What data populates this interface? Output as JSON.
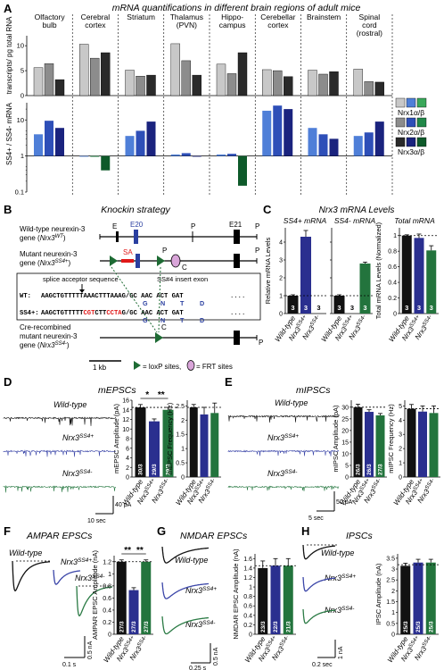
{
  "figure": {
    "panel_letters": [
      "A",
      "B",
      "C",
      "D",
      "E",
      "F",
      "G",
      "H"
    ],
    "panel_a": {
      "title": "mRNA quantifications in different brain regions of adult mice",
      "regions": [
        "Olfactory bulb",
        "Cerebral cortex",
        "Striatum",
        "Thalamus (PVN)",
        "Hippo-campus",
        "Cerebellar cortex",
        "Brainstem",
        "Spinal cord (rostral)"
      ],
      "top_ylabel": "transcripts/ pg total RNA",
      "bottom_ylabel": "SS4+ / SS4- mRNA",
      "legend": [
        "Nrx1α/β",
        "Nrx2α/β",
        "Nrx3α/β"
      ],
      "legend_colors": [
        [
          "#c8c8c8",
          "#4f7fd8",
          "#3aa85a"
        ],
        [
          "#8c8c8c",
          "#2e4fb8",
          "#218848"
        ],
        [
          "#2a2a2a",
          "#1a237e",
          "#0e5a2a"
        ]
      ]
    },
    "panel_b": {
      "title": "Knockin strategy",
      "wt_label": "Wild-type neurexin-3 gene (Nrx3WT)",
      "mut_label": "Mutant neurexin-3 gene (Nrx3SS4+)",
      "cre_label": "Cre-recombined mutant neurexin-3 gene (Nrx3SS4-)",
      "e_label": "E",
      "e20_label": "E20",
      "e21_label": "E21",
      "p_label": "P",
      "c_label": "C",
      "sa_label": "SA",
      "splice_label": "splice acceptor sequence",
      "insert_label": "SS#4 insert exon",
      "wt_prefix": "WT:",
      "wt_seq": "AAGCTGTTTTTAAACTTTAAAG/GC AAC ACT GAT",
      "ss4_prefix": "SS4+:",
      "ss4_seq": "AAGCTGTTTTTCGTCTTCCTAG/GC AAC ACT GAT",
      "aa": [
        "G",
        "N",
        "T",
        "D"
      ],
      "dots": "....",
      "scale": "1 kb",
      "loxp_legend": "= loxP sites,",
      "frt_legend": "= FRT sites"
    },
    "panel_c": {
      "title": "Nrx3 mRNA Levels",
      "sub_plus": "SS4+ mRNA",
      "sub_minus": "SS4- mRNA",
      "sub_total": "Total mRNA",
      "ylabel_rel": "Relative mRNA Levels",
      "ylabel_total": "Total mRNA Levels (Normalized)",
      "n_label": "3",
      "genotypes": [
        "Wild-type",
        "Nrx3SS4+",
        "Nrx3SS4-"
      ],
      "genotype_colors": [
        "#111111",
        "#2a2f8f",
        "#23743d"
      ]
    },
    "panel_d": {
      "title": "mEPSCs",
      "amp_ylabel": "mEPSC Amplitude (pA)",
      "freq_ylabel": "mEPSC Frequency (Hz)",
      "n_labels": [
        "30/3",
        "29/3",
        "29/3"
      ],
      "sig": [
        "*",
        "**"
      ],
      "scale_y": "40 pA",
      "scale_x": "10 sec"
    },
    "panel_e": {
      "title": "mIPSCs",
      "amp_ylabel": "mIPSC Amplitude (pA)",
      "freq_ylabel": "mIPSC Frequency (Hz)",
      "n_labels": [
        "26/3",
        "26/3",
        "27/3"
      ],
      "scale_y": "50 pA",
      "scale_x": "5 sec"
    },
    "panel_f": {
      "title": "AMPAR EPSCs",
      "ylabel": "AMPAR EPSC Amplitude (nA)",
      "n_labels": [
        "27/3",
        "27/3",
        "27/3"
      ],
      "sig": [
        "**",
        "**"
      ],
      "scale_y": "0.5 nA",
      "scale_x": "0.1 s"
    },
    "panel_g": {
      "title": "NMDAR EPSCs",
      "ylabel": "NMDAR EPSC Amplitude (nA)",
      "n_labels": [
        "23/3",
        "22/3",
        "21/3"
      ],
      "scale_y": "0.5 nA",
      "scale_x": "0.25 s"
    },
    "panel_h": {
      "title": "IPSCs",
      "ylabel": "IPSC Amplitude (nA)",
      "n_labels": [
        "25/3",
        "25/3",
        "25/3"
      ],
      "scale_y": "1 nA",
      "scale_x": "0.2 sec"
    }
  },
  "chart_data": [
    {
      "type": "bar",
      "id": "A-top",
      "categories": [
        "Olfactory bulb",
        "Cerebral cortex",
        "Striatum",
        "Thalamus (PVN)",
        "Hippo-campus",
        "Cerebellar cortex",
        "Brainstem",
        "Spinal cord (rostral)"
      ],
      "ylabel": "transcripts/ pg total RNA",
      "ylim": [
        0,
        12
      ],
      "yticks": [
        0,
        5,
        10
      ],
      "series": [
        {
          "name": "Nrx1α/β",
          "values": [
            5.6,
            10.3,
            5.1,
            10.4,
            6.3,
            5.2,
            5.1,
            5.3
          ]
        },
        {
          "name": "Nrx2α/β",
          "values": [
            6.4,
            7.5,
            3.9,
            7.0,
            4.4,
            5.0,
            4.3,
            2.8
          ]
        },
        {
          "name": "Nrx3α/β",
          "values": [
            3.2,
            8.6,
            4.1,
            4.1,
            8.6,
            3.8,
            4.8,
            2.7
          ]
        }
      ]
    },
    {
      "type": "bar",
      "id": "A-bottom",
      "categories": [
        "Olfactory bulb",
        "Cerebral cortex",
        "Striatum",
        "Thalamus (PVN)",
        "Hippo-campus",
        "Cerebellar cortex",
        "Brainstem",
        "Spinal cord (rostral)"
      ],
      "ylabel": "SS4+ / SS4- mRNA",
      "log_scale": true,
      "ylim": [
        0.1,
        30
      ],
      "yticks": [
        0.1,
        1,
        10
      ],
      "series": [
        {
          "name": "Nrx1α/β",
          "values": [
            4.0,
            1.0,
            3.6,
            1.1,
            1.1,
            18.0,
            6.0,
            3.6
          ]
        },
        {
          "name": "Nrx2α/β",
          "values": [
            9.5,
            0.95,
            5.0,
            1.2,
            1.15,
            25.0,
            4.0,
            4.5
          ]
        },
        {
          "name": "Nrx3α/β",
          "values": [
            6.0,
            0.4,
            9.0,
            1.0,
            0.15,
            20.0,
            3.0,
            9.0
          ]
        }
      ]
    },
    {
      "type": "bar",
      "id": "C-plus",
      "categories": [
        "Wild-type",
        "Nrx3SS4+",
        "Nrx3SS4-"
      ],
      "values": [
        1.0,
        4.3,
        0.0
      ],
      "ylim": [
        0,
        4.8
      ],
      "yticks": [
        0,
        1,
        2,
        3,
        4
      ],
      "ylabel": "Relative mRNA Levels"
    },
    {
      "type": "bar",
      "id": "C-minus",
      "categories": [
        "Wild-type",
        "Nrx3SS4+",
        "Nrx3SS4-"
      ],
      "values": [
        1.0,
        0.0,
        2.8
      ],
      "ylim": [
        0,
        4.8
      ],
      "yticks": [
        0,
        1,
        2,
        3,
        4
      ]
    },
    {
      "type": "bar",
      "id": "C-total",
      "categories": [
        "Wild-type",
        "Nrx3SS4+",
        "Nrx3SS4-"
      ],
      "values": [
        1.0,
        0.97,
        0.81
      ],
      "ylim": [
        0,
        1.1
      ],
      "yticks": [
        0,
        0.2,
        0.4,
        0.6,
        0.8,
        1.0
      ],
      "ylabel": "Total mRNA Levels (Normalized)"
    },
    {
      "type": "bar",
      "id": "D-amp",
      "categories": [
        "Wild-type",
        "Nrx3SS4+",
        "Nrx3SS4-"
      ],
      "values": [
        14.5,
        11.6,
        14.0
      ],
      "ylim": [
        0,
        16
      ],
      "yticks": [
        0,
        2,
        4,
        6,
        8,
        10,
        12,
        14,
        16
      ],
      "ylabel": "mEPSC Amplitude (pA)"
    },
    {
      "type": "bar",
      "id": "D-freq",
      "categories": [
        "Wild-type",
        "Nrx3SS4+",
        "Nrx3SS4-"
      ],
      "values": [
        2.45,
        2.2,
        2.25
      ],
      "ylim": [
        0,
        2.7
      ],
      "yticks": [
        0,
        0.5,
        1.0,
        1.5,
        2.0,
        2.5
      ],
      "ylabel": "mEPSC Frequency (Hz)"
    },
    {
      "type": "bar",
      "id": "E-amp",
      "categories": [
        "Wild-type",
        "Nrx3SS4+",
        "Nrx3SS4-"
      ],
      "values": [
        30.0,
        28.0,
        26.5
      ],
      "ylim": [
        0,
        33
      ],
      "yticks": [
        0,
        5,
        10,
        15,
        20,
        25,
        30
      ],
      "ylabel": "mIPSC Amplitude (pA)"
    },
    {
      "type": "bar",
      "id": "E-freq",
      "categories": [
        "Wild-type",
        "Nrx3SS4+",
        "Nrx3SS4-"
      ],
      "values": [
        4.8,
        4.6,
        4.5
      ],
      "ylim": [
        0,
        5.4
      ],
      "yticks": [
        0,
        1,
        2,
        3,
        4,
        5
      ],
      "ylabel": "mIPSC Frequency (Hz)"
    },
    {
      "type": "bar",
      "id": "F-amp",
      "categories": [
        "Wild-type",
        "Nrx3SS4+",
        "Nrx3SS4-"
      ],
      "values": [
        1.2,
        0.73,
        1.2
      ],
      "ylim": [
        0,
        1.3
      ],
      "yticks": [
        0,
        0.2,
        0.4,
        0.6,
        0.8,
        1.0,
        1.2
      ],
      "ylabel": "AMPAR EPSC Amplitude (nA)"
    },
    {
      "type": "bar",
      "id": "G-amp",
      "categories": [
        "Wild-type",
        "Nrx3SS4+",
        "Nrx3SS4-"
      ],
      "values": [
        1.4,
        1.45,
        1.45
      ],
      "ylim": [
        0,
        1.7
      ],
      "yticks": [
        0,
        0.2,
        0.4,
        0.6,
        0.8,
        1.0,
        1.2,
        1.4,
        1.6
      ],
      "ylabel": "NMDAR EPSC Amplitude (nA)"
    },
    {
      "type": "bar",
      "id": "H-amp",
      "categories": [
        "Wild-type",
        "Nrx3SS4+",
        "Nrx3SS4-"
      ],
      "values": [
        3.15,
        3.3,
        3.3
      ],
      "ylim": [
        0,
        3.7
      ],
      "yticks": [
        0,
        0.5,
        1.0,
        1.5,
        2.0,
        2.5,
        3.0,
        3.5
      ],
      "ylabel": "IPSC Amplitude (nA)"
    }
  ]
}
